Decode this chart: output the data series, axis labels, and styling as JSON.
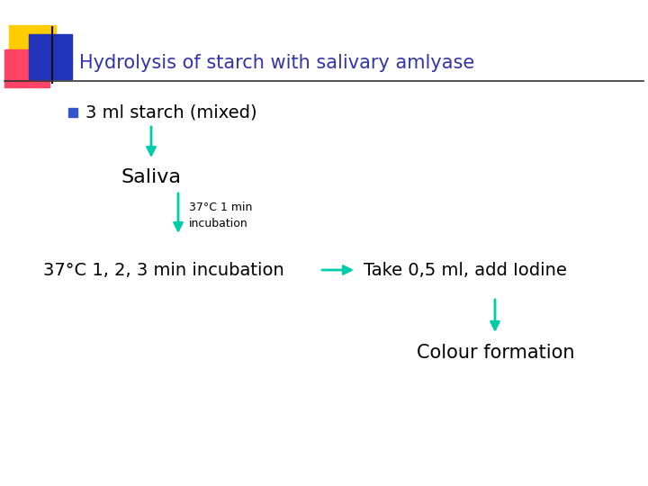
{
  "title": "Hydrolysis of starch with salivary amlyase",
  "title_color": "#3333aa",
  "title_fontsize": 15,
  "background_color": "#ffffff",
  "bullet_text": "3 ml starch (mixed)",
  "saliva_text": "Saliva",
  "incubation_label": "37°C 1 min\nincubation",
  "bottom_left_text": "37°C 1, 2, 3 min incubation",
  "take_text": "Take 0,5 ml, add Iodine",
  "colour_text": "Colour formation",
  "arrow_color": "#00ccaa",
  "text_color": "#000000",
  "bullet_square_color": "#3355cc",
  "yellow_color": "#ffcc00",
  "pink_color": "#ff4466",
  "blue_color": "#2233bb",
  "line_color": "#333333",
  "font_family": "DejaVu Sans"
}
